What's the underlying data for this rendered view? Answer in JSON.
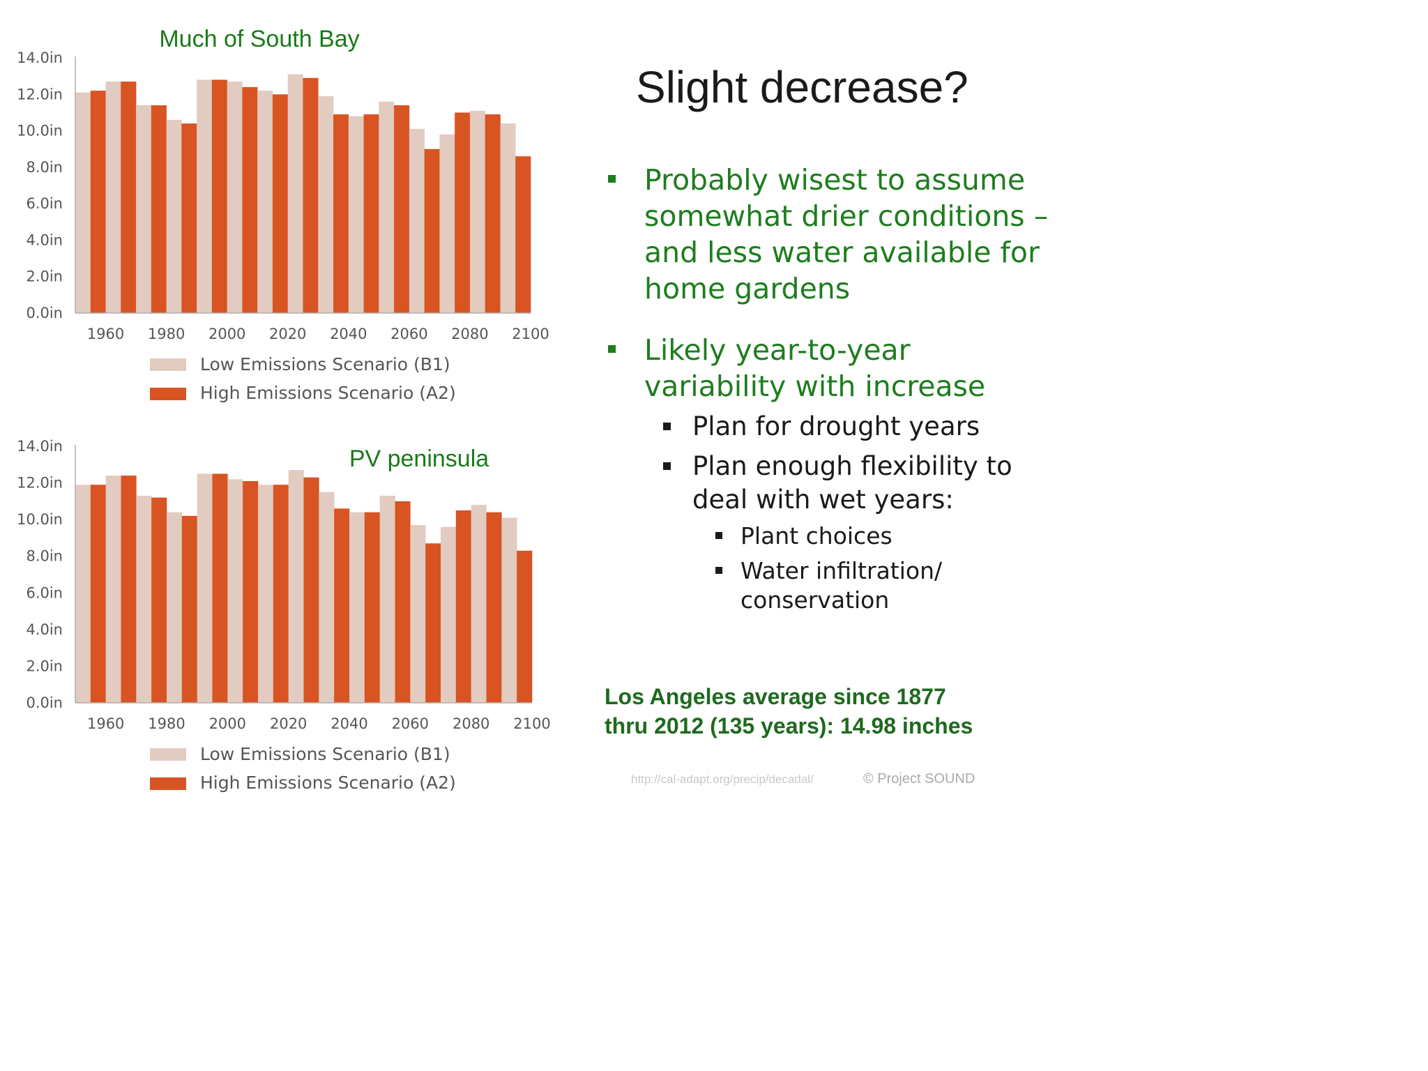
{
  "slide": {
    "title": "Slight decrease?",
    "bullets": [
      {
        "text_lines": [
          "Probably wisest to assume",
          "somewhat drier conditions –",
          "and less water available for",
          "home gardens"
        ]
      },
      {
        "text_lines": [
          "Likely year-to-year",
          "variability with increase"
        ]
      }
    ],
    "sub_bullets": [
      {
        "text_lines": [
          "Plan for drought years"
        ]
      },
      {
        "text_lines": [
          "Plan enough flexibility to",
          "deal with wet years:"
        ]
      }
    ],
    "sub_sub_bullets": [
      {
        "text_lines": [
          "Plant choices"
        ]
      },
      {
        "text_lines": [
          "Water infiltration/",
          "conservation"
        ]
      }
    ],
    "note_lines": [
      "Los Angeles average since 1877",
      "thru 2012 (135 years): 14.98 inches"
    ],
    "source_url": "http://cal-adapt.org/precip/decadal/",
    "copyright": "© Project  SOUND"
  },
  "colors": {
    "low_emissions": "#e2cbc0",
    "high_emissions": "#d85422",
    "title_green": "#1a7a1a",
    "axis": "#b0b0b0"
  },
  "chart_data": [
    {
      "type": "bar",
      "title": "Much of South Bay",
      "x_tick_labels": [
        "1960",
        "1980",
        "2000",
        "2020",
        "2040",
        "2060",
        "2080",
        "2100"
      ],
      "y_tick_labels": [
        "0.0in",
        "2.0in",
        "4.0in",
        "6.0in",
        "8.0in",
        "10.0in",
        "12.0in",
        "14.0in"
      ],
      "ylim": [
        0,
        14
      ],
      "grid": false,
      "legend_position": "bottom",
      "series": [
        {
          "name": "Low Emissions Scenario (B1)",
          "values": [
            12.1,
            12.7,
            11.4,
            10.6,
            12.8,
            12.7,
            12.2,
            13.1,
            11.9,
            10.8,
            11.6,
            10.1,
            9.8,
            11.1,
            10.4
          ]
        },
        {
          "name": "High Emissions Scenario (A2)",
          "values": [
            12.2,
            12.7,
            11.4,
            10.4,
            12.8,
            12.4,
            12.0,
            12.9,
            10.9,
            10.9,
            11.4,
            9.0,
            11.0,
            10.9,
            8.6
          ]
        }
      ]
    },
    {
      "type": "bar",
      "title": "PV peninsula",
      "x_tick_labels": [
        "1960",
        "1980",
        "2000",
        "2020",
        "2040",
        "2060",
        "2080",
        "2100"
      ],
      "y_tick_labels": [
        "0.0in",
        "2.0in",
        "4.0in",
        "6.0in",
        "8.0in",
        "10.0in",
        "12.0in",
        "14.0in"
      ],
      "ylim": [
        0,
        14
      ],
      "grid": false,
      "legend_position": "bottom",
      "series": [
        {
          "name": "Low Emissions Scenario (B1)",
          "values": [
            11.9,
            12.4,
            11.3,
            10.4,
            12.5,
            12.2,
            11.9,
            12.7,
            11.5,
            10.4,
            11.3,
            9.7,
            9.6,
            10.8,
            10.1
          ]
        },
        {
          "name": "High Emissions Scenario (A2)",
          "values": [
            11.9,
            12.4,
            11.2,
            10.2,
            12.5,
            12.1,
            11.9,
            12.3,
            10.6,
            10.4,
            11.0,
            8.7,
            10.5,
            10.4,
            8.3
          ]
        }
      ]
    }
  ]
}
